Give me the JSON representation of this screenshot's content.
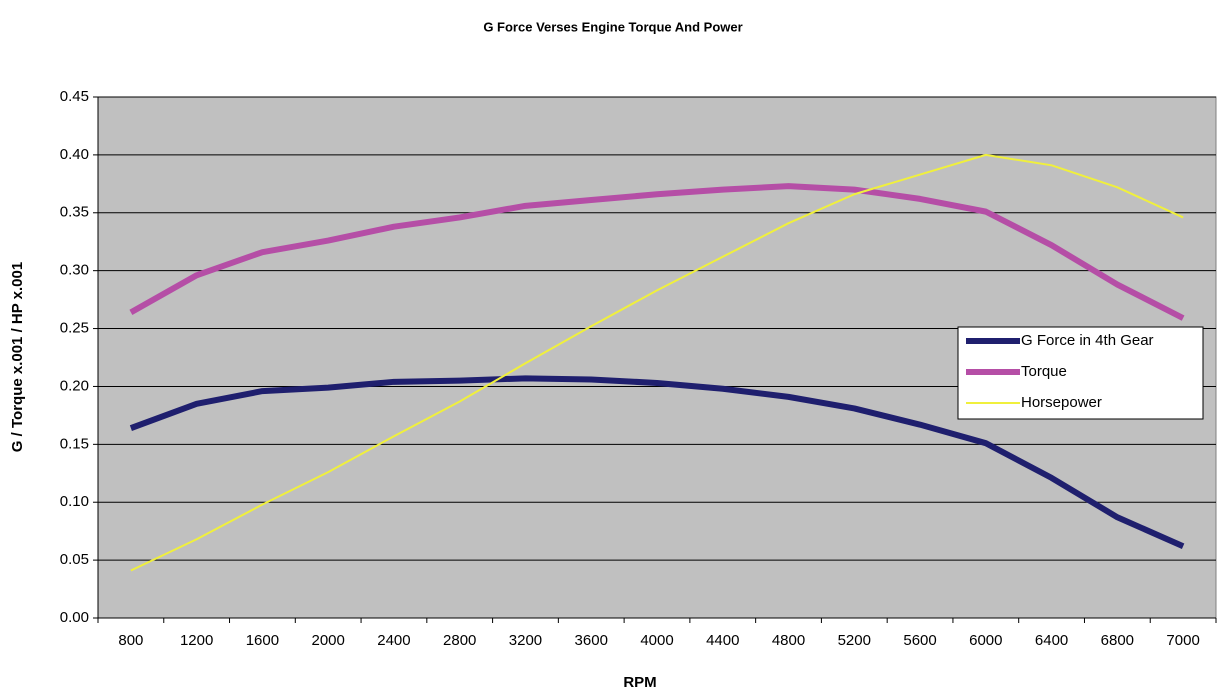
{
  "chart_data": {
    "type": "line",
    "title": "G Force Verses Engine Torque And Power",
    "x_label": "RPM",
    "y_label": "G / Torque x.001 / HP x.001",
    "categories": [
      "800",
      "1200",
      "1600",
      "2000",
      "2400",
      "2800",
      "3200",
      "3600",
      "4000",
      "4400",
      "4800",
      "5200",
      "5600",
      "6000",
      "6400",
      "6800",
      "7000"
    ],
    "series": [
      {
        "name": "G Force in 4th Gear",
        "color": "#1f1f6e",
        "width": 6,
        "values": [
          0.164,
          0.185,
          0.196,
          0.199,
          0.204,
          0.205,
          0.207,
          0.206,
          0.203,
          0.198,
          0.191,
          0.181,
          0.167,
          0.151,
          0.121,
          0.087,
          0.062
        ]
      },
      {
        "name": "Torque",
        "color": "#b54ea6",
        "width": 6,
        "values": [
          0.264,
          0.296,
          0.316,
          0.326,
          0.338,
          0.346,
          0.356,
          0.361,
          0.366,
          0.37,
          0.373,
          0.37,
          0.362,
          0.351,
          0.322,
          0.288,
          0.259
        ]
      },
      {
        "name": "Horsepower",
        "color": "#f0f03c",
        "width": 2,
        "values": [
          0.041,
          0.068,
          0.098,
          0.126,
          0.157,
          0.187,
          0.22,
          0.252,
          0.283,
          0.312,
          0.341,
          0.366,
          0.383,
          0.4,
          0.391,
          0.372,
          0.346
        ]
      }
    ],
    "ylim": [
      0,
      0.45
    ],
    "yticks": [
      {
        "value": 0,
        "label": "0.00"
      },
      0.05,
      {
        "value": 0.1,
        "label": "0.10"
      },
      0.15,
      {
        "value": 0.2,
        "label": "0.20"
      },
      0.25,
      {
        "value": 0.3,
        "label": "0.30"
      },
      0.35,
      {
        "value": 0.4,
        "label": "0.40"
      },
      0.45
    ],
    "grid": true,
    "legend": "right"
  }
}
